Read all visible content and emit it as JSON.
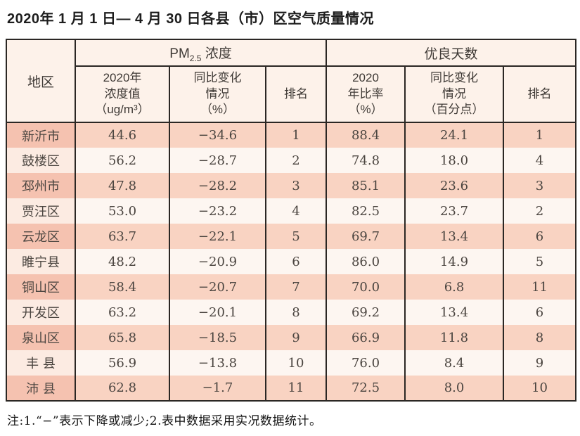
{
  "page": {
    "title": "2020年 1 月 1 日— 4 月 30 日各县（市）区空气质量情况",
    "note": "注:1.“−”表示下降或减少;2.表中数据采用实况数据统计。"
  },
  "colors": {
    "border": "#2b2724",
    "header_bg": "#fdf2ea",
    "row_odd_region_bg": "#f5c2b0",
    "row_odd_bg": "#f9d3c2",
    "row_even_region_bg": "#fcebe2",
    "row_even_bg": "#fdf6f1",
    "text": "#4b4540"
  },
  "headers": {
    "region": "地区",
    "pm_group_prefix": "PM",
    "pm_group_sub": "2.5",
    "pm_group_suffix": " 浓度",
    "good_group": "优良天数",
    "pm_value": "2020年\n浓度值\n（ug/m³）",
    "pm_change": "同比变化\n情况\n（%）",
    "pm_rank": "排名",
    "good_rate": "2020\n年比率\n（%）",
    "good_change": "同比变化\n情况\n（百分点）",
    "good_rank": "排名"
  },
  "chart_data": {
    "type": "table",
    "title": "2020年1月1日—4月30日各县（市）区空气质量情况",
    "column_groups": [
      "PM2.5 浓度",
      "优良天数"
    ],
    "columns": [
      "地区",
      "2020年浓度值（ug/m³）",
      "同比变化情况（%）",
      "排名",
      "2020年比率（%）",
      "同比变化情况（百分点）",
      "排名"
    ],
    "rows": [
      {
        "region": "新沂市",
        "pm_value": "44.6",
        "pm_change": "−34.6",
        "pm_rank": "1",
        "good_rate": "88.4",
        "good_change": "24.1",
        "good_rank": "1"
      },
      {
        "region": "鼓楼区",
        "pm_value": "56.2",
        "pm_change": "−28.7",
        "pm_rank": "2",
        "good_rate": "74.8",
        "good_change": "18.0",
        "good_rank": "4"
      },
      {
        "region": "邳州市",
        "pm_value": "47.8",
        "pm_change": "−28.2",
        "pm_rank": "3",
        "good_rate": "85.1",
        "good_change": "23.6",
        "good_rank": "3"
      },
      {
        "region": "贾汪区",
        "pm_value": "53.0",
        "pm_change": "−23.2",
        "pm_rank": "4",
        "good_rate": "82.5",
        "good_change": "23.7",
        "good_rank": "2"
      },
      {
        "region": "云龙区",
        "pm_value": "63.7",
        "pm_change": "−22.1",
        "pm_rank": "5",
        "good_rate": "69.7",
        "good_change": "13.4",
        "good_rank": "6"
      },
      {
        "region": "睢宁县",
        "pm_value": "48.2",
        "pm_change": "−20.9",
        "pm_rank": "6",
        "good_rate": "86.0",
        "good_change": "14.9",
        "good_rank": "5"
      },
      {
        "region": "铜山区",
        "pm_value": "58.4",
        "pm_change": "−20.7",
        "pm_rank": "7",
        "good_rate": "70.0",
        "good_change": "6.8",
        "good_rank": "11"
      },
      {
        "region": "开发区",
        "pm_value": "63.2",
        "pm_change": "−20.1",
        "pm_rank": "8",
        "good_rate": "69.2",
        "good_change": "13.4",
        "good_rank": "6"
      },
      {
        "region": "泉山区",
        "pm_value": "65.8",
        "pm_change": "−18.5",
        "pm_rank": "9",
        "good_rate": "66.9",
        "good_change": "11.8",
        "good_rank": "8"
      },
      {
        "region": "丰 县",
        "pm_value": "56.9",
        "pm_change": "−13.8",
        "pm_rank": "10",
        "good_rate": "76.0",
        "good_change": "8.4",
        "good_rank": "9"
      },
      {
        "region": "沛 县",
        "pm_value": "62.8",
        "pm_change": "−1.7",
        "pm_rank": "11",
        "good_rate": "72.5",
        "good_change": "8.0",
        "good_rank": "10"
      }
    ]
  }
}
